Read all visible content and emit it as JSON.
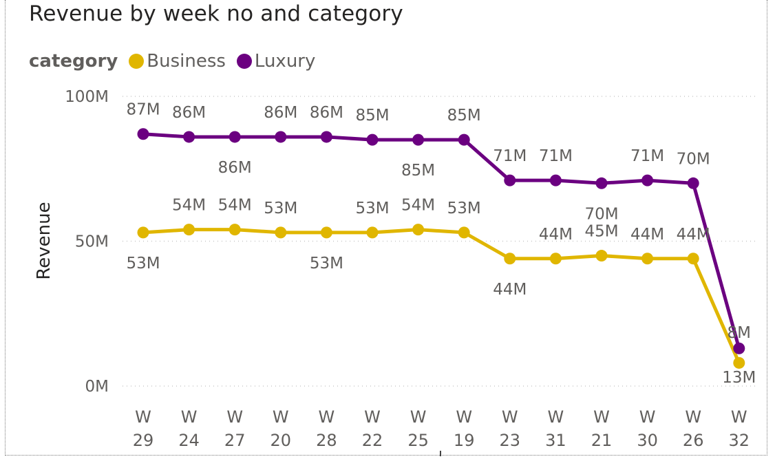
{
  "chart_data": {
    "type": "line",
    "title": "Revenue by week no and category",
    "legend_title": "category",
    "ylabel": "Revenue",
    "xlabel": "",
    "ylim": [
      0,
      100000000
    ],
    "yticks": [
      {
        "value": 0,
        "label": "0M"
      },
      {
        "value": 50000000,
        "label": "50M"
      },
      {
        "value": 100000000,
        "label": "100M"
      }
    ],
    "grid": true,
    "legend_position": "top-left",
    "categories": [
      [
        "W",
        "29"
      ],
      [
        "W",
        "24"
      ],
      [
        "W",
        "27"
      ],
      [
        "W",
        "20"
      ],
      [
        "W",
        "28"
      ],
      [
        "W",
        "22"
      ],
      [
        "W",
        "25"
      ],
      [
        "W",
        "19"
      ],
      [
        "W",
        "23"
      ],
      [
        "W",
        "31"
      ],
      [
        "W",
        "21"
      ],
      [
        "W",
        "30"
      ],
      [
        "W",
        "26"
      ],
      [
        "W",
        "32"
      ]
    ],
    "series": [
      {
        "name": "Business",
        "color": "#E0B600",
        "values": [
          53,
          54,
          54,
          53,
          53,
          53,
          54,
          53,
          44,
          44,
          45,
          44,
          44,
          8
        ],
        "labels": [
          "53M",
          "54M",
          "54M",
          "53M",
          "53M",
          "53M",
          "54M",
          "53M",
          "44M",
          "44M",
          "45M",
          "44M",
          "44M",
          "8M"
        ],
        "label_pos": [
          "below",
          "above",
          "above",
          "above",
          "below",
          "above",
          "above",
          "above",
          "below",
          "above",
          "above",
          "above",
          "above",
          "above"
        ]
      },
      {
        "name": "Luxury",
        "color": "#6B0080",
        "values": [
          87,
          86,
          86,
          86,
          86,
          85,
          85,
          85,
          71,
          71,
          70,
          71,
          70,
          13
        ],
        "labels": [
          "87M",
          "86M",
          "86M",
          "86M",
          "86M",
          "85M",
          "85M",
          "85M",
          "71M",
          "71M",
          "70M",
          "71M",
          "70M",
          "13M"
        ],
        "label_pos": [
          "above",
          "above",
          "below",
          "above",
          "above",
          "above",
          "below",
          "above",
          "above",
          "above",
          "below",
          "above",
          "above",
          "below"
        ]
      }
    ],
    "value_unit": 1000000
  }
}
